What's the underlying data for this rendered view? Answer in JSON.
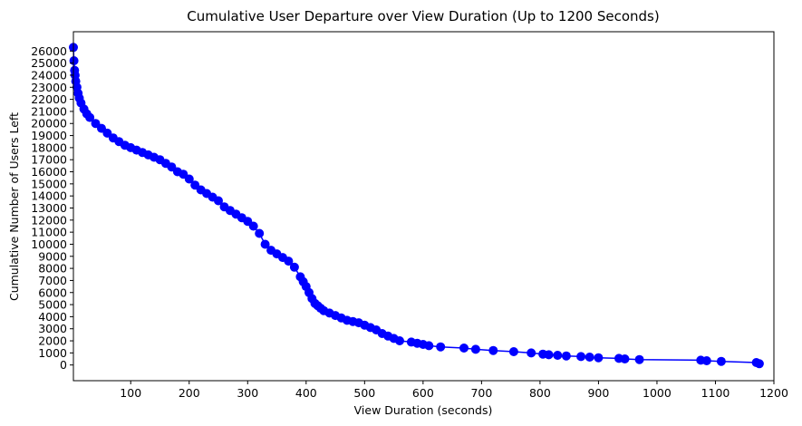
{
  "chart_data": {
    "type": "line",
    "title": "Cumulative User Departure over View Duration (Up to 1200 Seconds)",
    "xlabel": "View Duration (seconds)",
    "ylabel": "Cumulative Number of Users Left",
    "xlim": [
      2,
      1200
    ],
    "ylim": [
      -1300,
      27600
    ],
    "grid": false,
    "legend": "none",
    "color": "#0000ff",
    "x_ticks": [
      100,
      200,
      300,
      400,
      500,
      600,
      700,
      800,
      900,
      1000,
      1100,
      1200
    ],
    "y_ticks": [
      0,
      1000,
      2000,
      3000,
      4000,
      5000,
      6000,
      7000,
      8000,
      9000,
      10000,
      11000,
      12000,
      13000,
      14000,
      15000,
      16000,
      17000,
      18000,
      19000,
      20000,
      21000,
      22000,
      23000,
      24000,
      25000,
      26000
    ],
    "series": [
      {
        "x": [
          2,
          3,
          4,
          5,
          6,
          8,
          10,
          12,
          15,
          20,
          25,
          30,
          40,
          50,
          60,
          70,
          80,
          90,
          100,
          110,
          120,
          130,
          140,
          150,
          160,
          170,
          180,
          190,
          200,
          210,
          220,
          230,
          240,
          250,
          260,
          270,
          280,
          290,
          300,
          310,
          320,
          330,
          340,
          350,
          360,
          370,
          380,
          390,
          395,
          400,
          405,
          410,
          415,
          420,
          425,
          430,
          440,
          450,
          460,
          470,
          480,
          490,
          500,
          510,
          520,
          530,
          540,
          550,
          560,
          580,
          590,
          600,
          610,
          630,
          670,
          690,
          720,
          755,
          785,
          805,
          815,
          830,
          845,
          870,
          885,
          900,
          935,
          945,
          970,
          1075,
          1085,
          1110,
          1170,
          1175
        ],
        "y": [
          26300,
          25200,
          24400,
          24000,
          23500,
          23000,
          22500,
          22100,
          21700,
          21200,
          20800,
          20500,
          20000,
          19600,
          19200,
          18800,
          18500,
          18200,
          18000,
          17800,
          17600,
          17400,
          17200,
          17000,
          16700,
          16400,
          16000,
          15800,
          15400,
          14900,
          14500,
          14200,
          13900,
          13600,
          13100,
          12800,
          12500,
          12200,
          11900,
          11500,
          10900,
          10000,
          9500,
          9200,
          8900,
          8600,
          8100,
          7300,
          6900,
          6500,
          6000,
          5500,
          5100,
          4900,
          4700,
          4500,
          4300,
          4100,
          3900,
          3700,
          3600,
          3500,
          3300,
          3100,
          2900,
          2600,
          2400,
          2200,
          2000,
          1900,
          1800,
          1700,
          1600,
          1500,
          1400,
          1300,
          1200,
          1100,
          1000,
          900,
          850,
          800,
          750,
          700,
          650,
          600,
          550,
          500,
          450,
          400,
          350,
          300,
          200,
          100
        ]
      }
    ]
  }
}
